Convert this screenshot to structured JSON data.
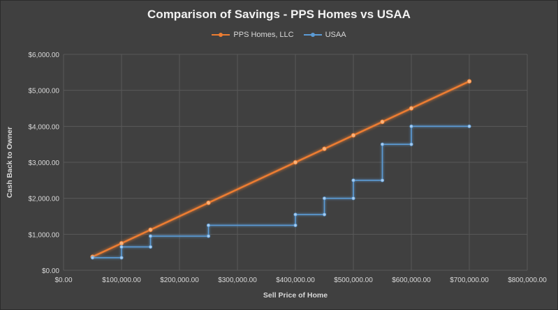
{
  "chart_data": {
    "type": "line",
    "title": "Comparison of Savings - PPS Homes vs USAA",
    "xlabel": "Sell Price of Home",
    "ylabel": "Cash Back to Owner",
    "xlim": [
      0,
      800000
    ],
    "ylim": [
      0,
      6000
    ],
    "x_ticks": [
      0,
      100000,
      200000,
      300000,
      400000,
      500000,
      600000,
      700000,
      800000
    ],
    "x_tick_labels": [
      "$0.00",
      "$100,000.00",
      "$200,000.00",
      "$300,000.00",
      "$400,000.00",
      "$500,000.00",
      "$600,000.00",
      "$700,000.00",
      "$800,000.00"
    ],
    "y_ticks": [
      0,
      1000,
      2000,
      3000,
      4000,
      5000,
      6000
    ],
    "y_tick_labels": [
      "$0.00",
      "$1,000.00",
      "$2,000.00",
      "$3,000.00",
      "$4,000.00",
      "$5,000.00",
      "$6,000.00"
    ],
    "grid": "vertical and horizontal",
    "legend_position": "top",
    "series": [
      {
        "name": "PPS Homes, LLC",
        "color": "#ed7d31",
        "x": [
          50000,
          100000,
          150000,
          250000,
          400000,
          450000,
          500000,
          550000,
          600000,
          700000
        ],
        "y": [
          375,
          750,
          1125,
          1875,
          3000,
          3375,
          3750,
          4125,
          4500,
          5250
        ]
      },
      {
        "name": "USAA",
        "color": "#5b9bd5",
        "x": [
          50000,
          100000,
          100000,
          150000,
          150000,
          250000,
          250000,
          400000,
          400000,
          450000,
          450000,
          500000,
          500000,
          550000,
          550000,
          600000,
          600000,
          700000
        ],
        "y": [
          350,
          350,
          650,
          650,
          950,
          950,
          1250,
          1250,
          1550,
          1550,
          2000,
          2000,
          2500,
          2500,
          3500,
          3500,
          4000,
          4000
        ]
      }
    ]
  }
}
